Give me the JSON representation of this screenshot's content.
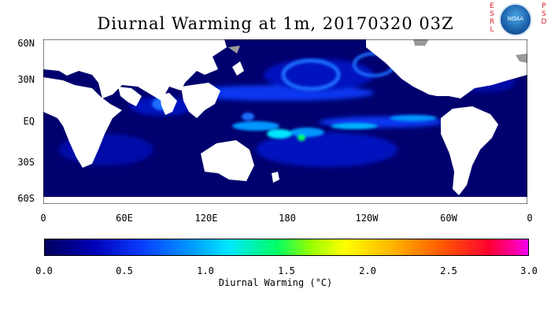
{
  "title": "Diurnal Warming at 1m, 20170320 03Z",
  "logo": {
    "left_letters": [
      "E",
      "S",
      "R",
      "L"
    ],
    "right_letters": [
      "P",
      "S",
      "D"
    ],
    "seal_text": "NOAA"
  },
  "map": {
    "lat_labels": [
      "60N",
      "30N",
      "EQ",
      "30S",
      "60S"
    ],
    "lon_labels": [
      "0",
      "60E",
      "120E",
      "180",
      "120W",
      "60W",
      "0"
    ]
  },
  "colorbar": {
    "ticks": [
      "0.0",
      "0.5",
      "1.0",
      "1.5",
      "2.0",
      "2.5",
      "3.0"
    ],
    "label": "Diurnal Warming (°C)",
    "range": [
      0.0,
      3.0
    ],
    "colors": [
      "#00005f",
      "#0000b4",
      "#0a3cff",
      "#0096ff",
      "#00e6ff",
      "#00ff64",
      "#96ff00",
      "#ffff00",
      "#ffb400",
      "#ff5a00",
      "#ff0032",
      "#ff00a0",
      "#f000f0"
    ]
  }
}
